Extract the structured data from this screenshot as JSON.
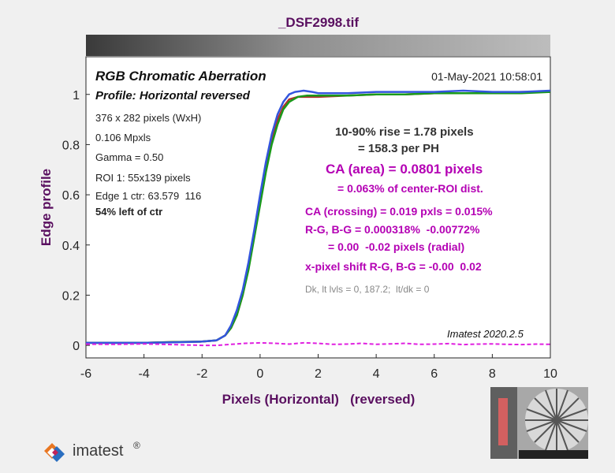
{
  "window": {
    "title": "_DSF2998.tif"
  },
  "colors": {
    "red": "#b03030",
    "green": "#1a9a1a",
    "blue": "#3355dd",
    "dash": "#e020e0",
    "magenta": "#b400b4",
    "axis_label": "#5a1060",
    "panel": "#ffffff",
    "figure_bg": "#f0f0f0"
  },
  "chart_data": {
    "type": "line",
    "title": "_DSF2998.tif",
    "xlabel": "Pixels (Horizontal)   (reversed)",
    "ylabel": "Edge profile",
    "xlim": [
      -6,
      10
    ],
    "ylim": [
      -0.05,
      1.15
    ],
    "x_ticks": [
      -6,
      -4,
      -2,
      0,
      2,
      4,
      6,
      8,
      10
    ],
    "y_ticks": [
      0,
      0.2,
      0.4,
      0.6,
      0.8,
      1
    ],
    "grid": false,
    "series": [
      {
        "color": "red",
        "points": [
          [
            -6,
            0.01
          ],
          [
            -4,
            0.01
          ],
          [
            -3,
            0.013
          ],
          [
            -2,
            0.015
          ],
          [
            -1.5,
            0.02
          ],
          [
            -1.2,
            0.04
          ],
          [
            -1,
            0.07
          ],
          [
            -0.8,
            0.12
          ],
          [
            -0.6,
            0.2
          ],
          [
            -0.4,
            0.31
          ],
          [
            -0.2,
            0.44
          ],
          [
            0,
            0.57
          ],
          [
            0.2,
            0.7
          ],
          [
            0.4,
            0.81
          ],
          [
            0.6,
            0.9
          ],
          [
            0.8,
            0.95
          ],
          [
            1,
            0.98
          ],
          [
            1.3,
            0.99
          ],
          [
            1.6,
            0.99
          ],
          [
            2,
            0.99
          ],
          [
            3,
            0.995
          ],
          [
            4,
            1.0
          ],
          [
            5,
            1.0
          ],
          [
            6,
            1.005
          ],
          [
            7,
            1.005
          ],
          [
            8,
            1.005
          ],
          [
            9,
            1.01
          ],
          [
            10,
            1.01
          ]
        ]
      },
      {
        "color": "green",
        "points": [
          [
            -6,
            0.01
          ],
          [
            -4,
            0.01
          ],
          [
            -3,
            0.013
          ],
          [
            -2,
            0.015
          ],
          [
            -1.5,
            0.02
          ],
          [
            -1.2,
            0.04
          ],
          [
            -1,
            0.07
          ],
          [
            -0.8,
            0.12
          ],
          [
            -0.6,
            0.2
          ],
          [
            -0.4,
            0.3
          ],
          [
            -0.2,
            0.43
          ],
          [
            0,
            0.56
          ],
          [
            0.2,
            0.69
          ],
          [
            0.4,
            0.8
          ],
          [
            0.6,
            0.88
          ],
          [
            0.8,
            0.94
          ],
          [
            1,
            0.97
          ],
          [
            1.3,
            0.99
          ],
          [
            1.6,
            0.995
          ],
          [
            2,
            0.995
          ],
          [
            3,
            0.995
          ],
          [
            4,
            1.0
          ],
          [
            5,
            1.0
          ],
          [
            6,
            1.005
          ],
          [
            7,
            1.005
          ],
          [
            8,
            1.005
          ],
          [
            9,
            1.005
          ],
          [
            10,
            1.01
          ]
        ]
      },
      {
        "color": "blue",
        "points": [
          [
            -6,
            0.01
          ],
          [
            -4,
            0.01
          ],
          [
            -3,
            0.012
          ],
          [
            -2,
            0.015
          ],
          [
            -1.5,
            0.02
          ],
          [
            -1.2,
            0.04
          ],
          [
            -1,
            0.08
          ],
          [
            -0.8,
            0.14
          ],
          [
            -0.6,
            0.22
          ],
          [
            -0.4,
            0.33
          ],
          [
            -0.2,
            0.46
          ],
          [
            0,
            0.6
          ],
          [
            0.2,
            0.73
          ],
          [
            0.4,
            0.84
          ],
          [
            0.6,
            0.92
          ],
          [
            0.8,
            0.97
          ],
          [
            1,
            1.0
          ],
          [
            1.2,
            1.01
          ],
          [
            1.5,
            1.015
          ],
          [
            1.8,
            1.01
          ],
          [
            2,
            1.005
          ],
          [
            3,
            1.005
          ],
          [
            4,
            1.01
          ],
          [
            5,
            1.01
          ],
          [
            6,
            1.01
          ],
          [
            7,
            1.015
          ],
          [
            8,
            1.01
          ],
          [
            9,
            1.01
          ],
          [
            10,
            1.015
          ]
        ]
      },
      {
        "color": "dash",
        "dashed": true,
        "points": [
          [
            -6,
            0.005
          ],
          [
            -5,
            0.004
          ],
          [
            -4,
            0.006
          ],
          [
            -3,
            0.003
          ],
          [
            -2,
            0.0
          ],
          [
            -1.5,
            0.0
          ],
          [
            -1,
            0.004
          ],
          [
            -0.5,
            0.008
          ],
          [
            0,
            0.01
          ],
          [
            0.5,
            0.008
          ],
          [
            1,
            0.005
          ],
          [
            1.5,
            0.01
          ],
          [
            2,
            0.008
          ],
          [
            2.5,
            0.004
          ],
          [
            3,
            0.005
          ],
          [
            3.5,
            0.008
          ],
          [
            4,
            0.004
          ],
          [
            4.5,
            0.006
          ],
          [
            5,
            0.008
          ],
          [
            5.5,
            0.004
          ],
          [
            6,
            0.005
          ],
          [
            6.5,
            0.007
          ],
          [
            7,
            0.003
          ],
          [
            7.5,
            0.005
          ],
          [
            8,
            0.006
          ],
          [
            8.5,
            0.004
          ],
          [
            9,
            0.003
          ],
          [
            9.5,
            0.005
          ],
          [
            10,
            0.004
          ]
        ]
      }
    ],
    "annotations": {
      "heading": "RGB Chromatic Aberration",
      "date": "01-May-2021 10:58:01",
      "profile": "Profile: Horizontal reversed",
      "info": [
        "376 x 282 pixels (WxH)",
        "0.106 Mpxls",
        "Gamma = 0.50",
        "ROI 1: 55x139 pixels",
        "Edge 1 ctr: 63.579  116"
      ],
      "left_of_ctr": "54% left of ctr",
      "rise": "10-90% rise = 1.78 pixels",
      "per_ph": "= 158.3 per PH",
      "ca_area": "CA (area) = 0.0801 pixels",
      "ca_pct": "= 0.063% of center-ROI dist.",
      "ca_crossing": "CA (crossing) = 0.019 pxls = 0.015%",
      "rg_bg": "R-G, B-G = 0.000318%  -0.00772%",
      "radial": "= 0.00  -0.02 pixels (radial)",
      "shift": "x-pixel shift R-G, B-G = -0.00  0.02",
      "dk": "Dk, lt lvls = 0, 187.2;  lt/dk = 0",
      "version": "Imatest 2020.2.5"
    }
  },
  "logo": {
    "text": "imatest",
    "reg": "®"
  }
}
